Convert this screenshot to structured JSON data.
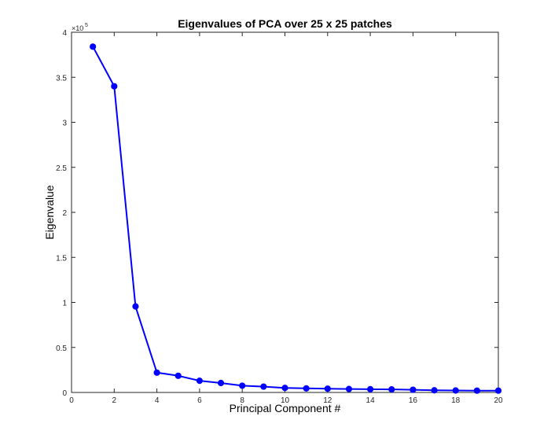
{
  "chart_data": {
    "type": "line",
    "title": "Eigenvalues of PCA over 25 x 25 patches",
    "xlabel": "Principal Component #",
    "ylabel": "Eigenvalue",
    "xlim": [
      0,
      20
    ],
    "ylim": [
      0,
      4
    ],
    "y_multiplier_label": "×10",
    "y_multiplier_exponent": "5",
    "xticks": [
      0,
      2,
      4,
      6,
      8,
      10,
      12,
      14,
      16,
      18,
      20
    ],
    "xtick_labels": [
      "0",
      "2",
      "4",
      "6",
      "8",
      "10",
      "12",
      "14",
      "16",
      "18",
      "20"
    ],
    "yticks": [
      0,
      0.5,
      1,
      1.5,
      2,
      2.5,
      3,
      3.5,
      4
    ],
    "ytick_labels": [
      "0",
      "0.5",
      "1",
      "1.5",
      "2",
      "2.5",
      "3",
      "3.5",
      "4"
    ],
    "grid": false,
    "line_color": "#0000ff",
    "series": [
      {
        "x": [
          1,
          2,
          3,
          4,
          5,
          6,
          7,
          8,
          9,
          10,
          11,
          12,
          13,
          14,
          15,
          16,
          17,
          18,
          19,
          20
        ],
        "values": [
          3.84,
          3.4,
          0.955,
          0.22,
          0.185,
          0.13,
          0.105,
          0.075,
          0.065,
          0.05,
          0.045,
          0.042,
          0.038,
          0.036,
          0.034,
          0.03,
          0.024,
          0.022,
          0.02,
          0.02
        ]
      }
    ]
  }
}
